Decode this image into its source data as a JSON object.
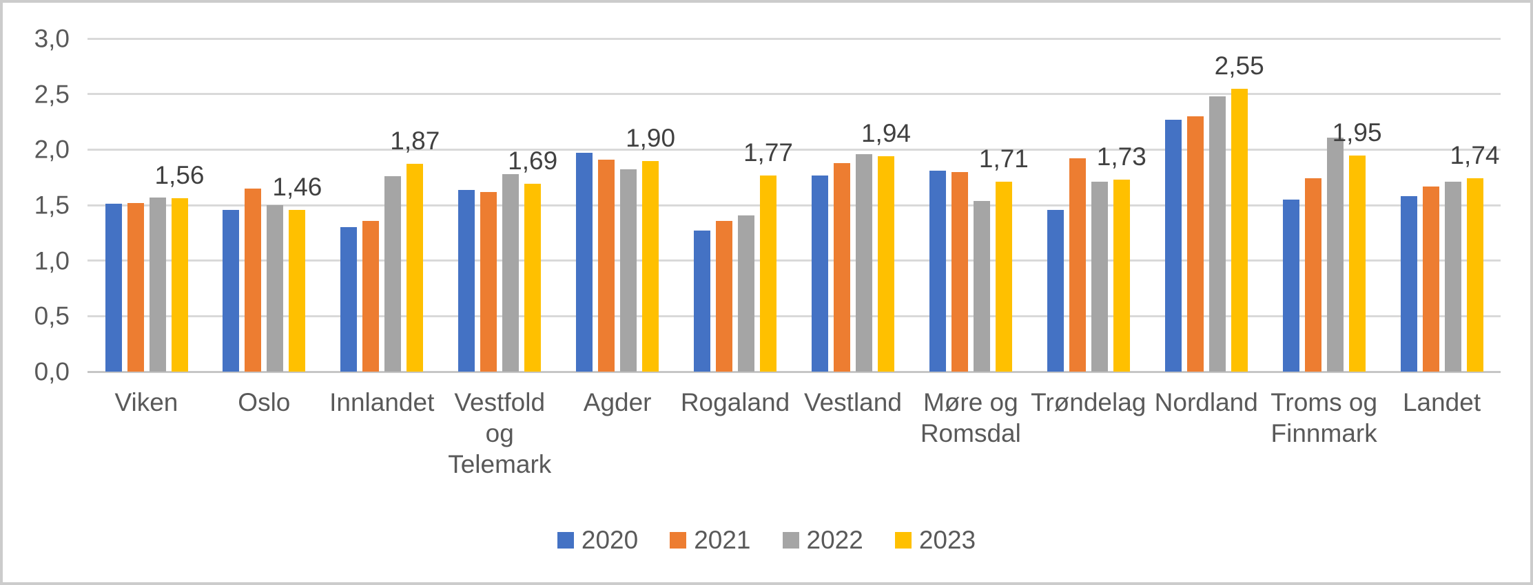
{
  "chart_data": {
    "type": "bar",
    "title": "",
    "categories": [
      "Viken",
      "Oslo",
      "Innlandet",
      "Vestfold\nog\nTelemark",
      "Agder",
      "Rogaland",
      "Vestland",
      "Møre og\nRomsdal",
      "Trøndelag",
      "Nordland",
      "Troms og\nFinnmark",
      "Landet"
    ],
    "series": [
      {
        "name": "2020",
        "color": "#4472C4",
        "values": [
          1.51,
          1.46,
          1.3,
          1.64,
          1.97,
          1.27,
          1.77,
          1.81,
          1.46,
          2.27,
          1.55,
          1.58
        ]
      },
      {
        "name": "2021",
        "color": "#ED7D31",
        "values": [
          1.52,
          1.65,
          1.36,
          1.62,
          1.91,
          1.36,
          1.88,
          1.8,
          1.92,
          2.3,
          1.74,
          1.67
        ]
      },
      {
        "name": "2022",
        "color": "#A5A5A5",
        "values": [
          1.57,
          1.5,
          1.76,
          1.78,
          1.82,
          1.41,
          1.96,
          1.54,
          1.71,
          2.48,
          2.11,
          1.71
        ]
      },
      {
        "name": "2023",
        "color": "#FFC000",
        "values": [
          1.56,
          1.46,
          1.87,
          1.69,
          1.9,
          1.77,
          1.94,
          1.71,
          1.73,
          2.55,
          1.95,
          1.74
        ]
      }
    ],
    "data_labels": {
      "labeled_series": "2023",
      "values": [
        "1,56",
        "1,46",
        "1,87",
        "1,69",
        "1,90",
        "1,77",
        "1,94",
        "1,71",
        "1,73",
        "2,55",
        "1,95",
        "1,74"
      ]
    },
    "y_axis": {
      "min": 0,
      "max": 3,
      "step": 0.5,
      "tick_labels": [
        "0,0",
        "0,5",
        "1,0",
        "1,5",
        "2,0",
        "2,5",
        "3,0"
      ]
    },
    "legend": {
      "position": "bottom",
      "entries": [
        "2020",
        "2021",
        "2022",
        "2023"
      ]
    },
    "grid": true,
    "colors": {
      "gridline": "#D9D9D9",
      "axis_line": "#C6C6C6",
      "text": "#595959",
      "frame_border": "#CCCCCC",
      "background": "#FFFFFF"
    }
  }
}
